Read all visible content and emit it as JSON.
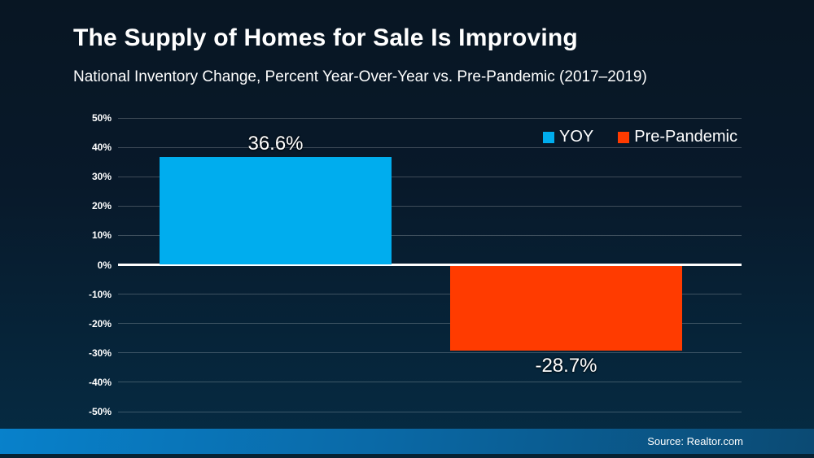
{
  "title": "The Supply of Homes for Sale Is Improving",
  "subtitle": "National Inventory Change, Percent Year-Over-Year vs. Pre-Pandemic (2017–2019)",
  "source": "Source: Realtor.com",
  "legend": [
    {
      "label": "YOY",
      "color": "#00adee"
    },
    {
      "label": "Pre-Pandemic",
      "color": "#ff3b00"
    }
  ],
  "colors": {
    "background_top": "#081623",
    "background_bottom": "#052c44",
    "gridline": "rgba(255,255,255,0.22)",
    "zero_line": "#ffffff",
    "bar_positive": "#00adee",
    "bar_negative": "#ff3b00",
    "footer_gradient_left": "#0881cb",
    "footer_gradient_right": "#0b4a73",
    "text": "#ffffff"
  },
  "chart_data": {
    "type": "bar",
    "title": "The Supply of Homes for Sale Is Improving",
    "subtitle": "National Inventory Change, Percent Year-Over-Year vs. Pre-Pandemic (2017–2019)",
    "categories": [
      "YOY",
      "Pre-Pandemic"
    ],
    "values": [
      36.6,
      -28.7
    ],
    "value_labels": [
      "36.6%",
      "-28.7%"
    ],
    "bar_colors": [
      "#00adee",
      "#ff3b00"
    ],
    "ylim": [
      -50,
      50
    ],
    "ytick_step": 10,
    "ytick_labels": [
      "50%",
      "40%",
      "30%",
      "20%",
      "10%",
      "0%",
      "-10%",
      "-20%",
      "-30%",
      "-40%",
      "-50%"
    ],
    "grid": true,
    "zero_line": true,
    "legend_position": "top-right",
    "legend_entries": [
      "YOY",
      "Pre-Pandemic"
    ],
    "source": "Source: Realtor.com"
  }
}
